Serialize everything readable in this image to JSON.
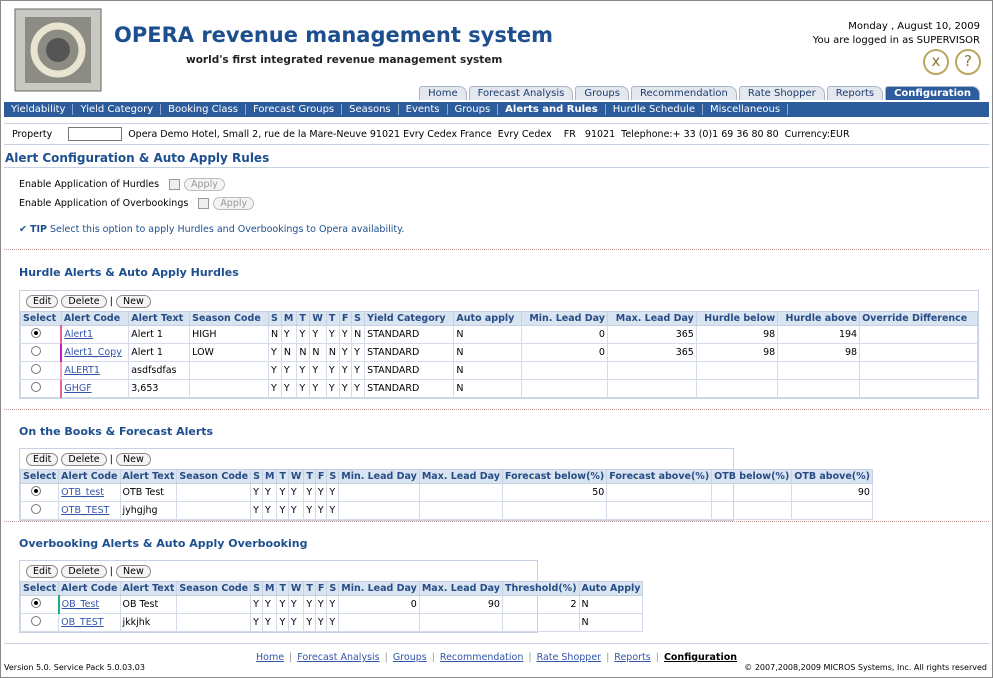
{
  "header": {
    "title": "OPERA revenue management system",
    "subtitle": "world's first integrated revenue management system",
    "date": "Monday , August 10, 2009",
    "user": "You are logged in as SUPERVISOR",
    "icons": [
      "x",
      "?"
    ]
  },
  "main_tabs": {
    "items": [
      "Home",
      "Forecast Analysis",
      "Groups",
      "Recommendation",
      "Rate Shopper",
      "Reports",
      "Configuration"
    ],
    "active": 6
  },
  "sub_tabs": {
    "items": [
      "Yieldability",
      "Yield Category",
      "Booking Class",
      "Forecast Groups",
      "Seasons",
      "Events",
      "Groups",
      "Alerts and Rules",
      "Hurdle Schedule",
      "Miscellaneous"
    ],
    "active": 7
  },
  "property": {
    "label": "Property",
    "text": "Opera Demo Hotel, Small 2, rue de la Mare-Neuve 91021 Evry Cedex France  Evry Cedex    FR   91021  Telephone:+ 33 (0)1 69 36 80 80  Currency:EUR"
  },
  "page_title": "Alert Configuration & Auto Apply Rules",
  "settings": [
    {
      "label": "Enable Application of Hurdles",
      "button": "Apply"
    },
    {
      "label": "Enable Application of Overbookings",
      "button": "Apply"
    }
  ],
  "tip": {
    "label": "TIP",
    "text": "Select this option to apply Hurdles and Overbookings to Opera availability."
  },
  "sections": [
    {
      "title": "Hurdle Alerts & Auto Apply Hurdles",
      "buttons": [
        "Edit",
        "Delete",
        "New"
      ],
      "selected": 0,
      "columns": [
        "Select",
        "Alert Code",
        "Alert Text",
        "Season Code",
        "S",
        "M",
        "T",
        "W",
        "T",
        "F",
        "S",
        "Yield Category",
        "Auto apply",
        "Min. Lead Day",
        "Max. Lead Day",
        "Hurdle below",
        "Hurdle above",
        "Override Difference"
      ],
      "rows": [
        [
          "Alert1",
          "Alert 1",
          "HIGH",
          "N",
          "Y",
          "Y",
          "Y",
          "Y",
          "Y",
          "N",
          "STANDARD",
          "N",
          0,
          365,
          98,
          194,
          null
        ],
        [
          "Alert1_Copy",
          "Alert 1",
          "LOW",
          "Y",
          "N",
          "N",
          "N",
          "N",
          "Y",
          "Y",
          "STANDARD",
          "N",
          0,
          365,
          98,
          98,
          null
        ],
        [
          "ALERT1",
          "asdfsdfas",
          null,
          "Y",
          "Y",
          "Y",
          "Y",
          "Y",
          "Y",
          "Y",
          "STANDARD",
          "N",
          null,
          null,
          null,
          null,
          null
        ],
        [
          "GHGF",
          "3,653",
          null,
          "Y",
          "Y",
          "Y",
          "Y",
          "Y",
          "Y",
          "Y",
          "STANDARD",
          "N",
          null,
          null,
          null,
          null,
          null
        ]
      ]
    },
    {
      "title": "On the Books & Forecast Alerts",
      "buttons": [
        "Edit",
        "Delete",
        "New"
      ],
      "selected": 0,
      "columns": [
        "Select",
        "Alert Code",
        "Alert Text",
        "Season Code",
        "S",
        "M",
        "T",
        "W",
        "T",
        "F",
        "S",
        "Min. Lead Day",
        "Max. Lead Day",
        "Forecast below(%)",
        "Forecast above(%)",
        "OTB below(%)",
        "OTB above(%)"
      ],
      "rows": [
        [
          "OTB_test",
          "OTB Test",
          null,
          "Y",
          "Y",
          "Y",
          "Y",
          "Y",
          "Y",
          "Y",
          null,
          null,
          50,
          null,
          null,
          90
        ],
        [
          "OTB_TEST",
          "jyhgjhg",
          null,
          "Y",
          "Y",
          "Y",
          "Y",
          "Y",
          "Y",
          "Y",
          null,
          null,
          null,
          null,
          null,
          null
        ]
      ]
    },
    {
      "title": "Overbooking Alerts & Auto Apply Overbooking",
      "buttons": [
        "Edit",
        "Delete",
        "New"
      ],
      "selected": 0,
      "columns": [
        "Select",
        "Alert Code",
        "Alert Text",
        "Season Code",
        "S",
        "M",
        "T",
        "W",
        "T",
        "F",
        "S",
        "Min. Lead Day",
        "Max. Lead Day",
        "Threshold(%)",
        "Auto Apply"
      ],
      "rows": [
        [
          "OB_Test",
          "OB Test",
          null,
          "Y",
          "Y",
          "Y",
          "Y",
          "Y",
          "Y",
          "Y",
          0,
          90,
          2,
          "N"
        ],
        [
          "OB_TEST",
          "jkkjhk",
          null,
          "Y",
          "Y",
          "Y",
          "Y",
          "Y",
          "Y",
          "Y",
          null,
          null,
          null,
          "N"
        ]
      ]
    }
  ],
  "footer": {
    "version": "Version 5.0. Service Pack 5.0.03.03",
    "links": [
      "Home",
      "Forecast Analysis",
      "Groups",
      "Recommendation",
      "Rate Shopper",
      "Reports",
      "Configuration"
    ],
    "active": 6,
    "copyright": "© 2007,2008,2009 MICROS Systems, Inc. All rights reserved"
  }
}
